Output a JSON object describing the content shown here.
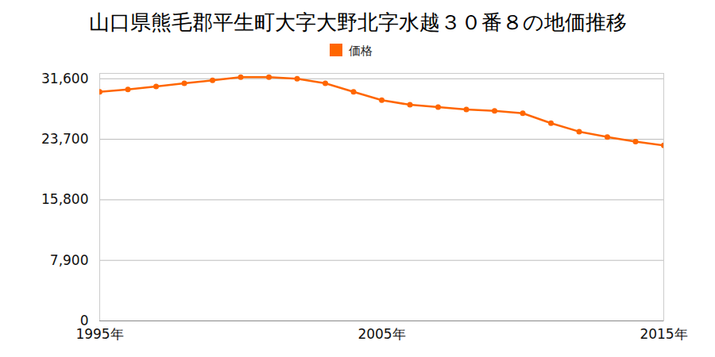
{
  "chart_data": {
    "type": "line",
    "title": "山口県熊毛郡平生町大字大野北字水越３０番８の地価推移",
    "x": [
      1995,
      1996,
      1997,
      1998,
      1999,
      2000,
      2001,
      2002,
      2003,
      2004,
      2005,
      2006,
      2007,
      2008,
      2009,
      2010,
      2011,
      2012,
      2013,
      2014,
      2015
    ],
    "series": [
      {
        "name": "価格",
        "color": "#ff6600",
        "marker": "circle",
        "values": [
          29900,
          30200,
          30600,
          31000,
          31400,
          31800,
          31800,
          31600,
          31000,
          29900,
          28800,
          28200,
          27900,
          27600,
          27400,
          27100,
          25800,
          24700,
          24000,
          23400,
          22900
        ]
      }
    ],
    "xlim": [
      1995,
      2015
    ],
    "xticks": [
      {
        "value": 1995,
        "label": "1995年"
      },
      {
        "value": 2005,
        "label": "2005年"
      },
      {
        "value": 2015,
        "label": "2015年"
      }
    ],
    "ylim": [
      0,
      32300
    ],
    "yticks": [
      0,
      {
        "value": 7900,
        "label": "7,900"
      },
      {
        "value": 15800,
        "label": "15,800"
      },
      {
        "value": 23700,
        "label": "23,700"
      },
      {
        "value": 31600,
        "label": "31,600"
      }
    ],
    "grid": true,
    "legend": "top"
  }
}
